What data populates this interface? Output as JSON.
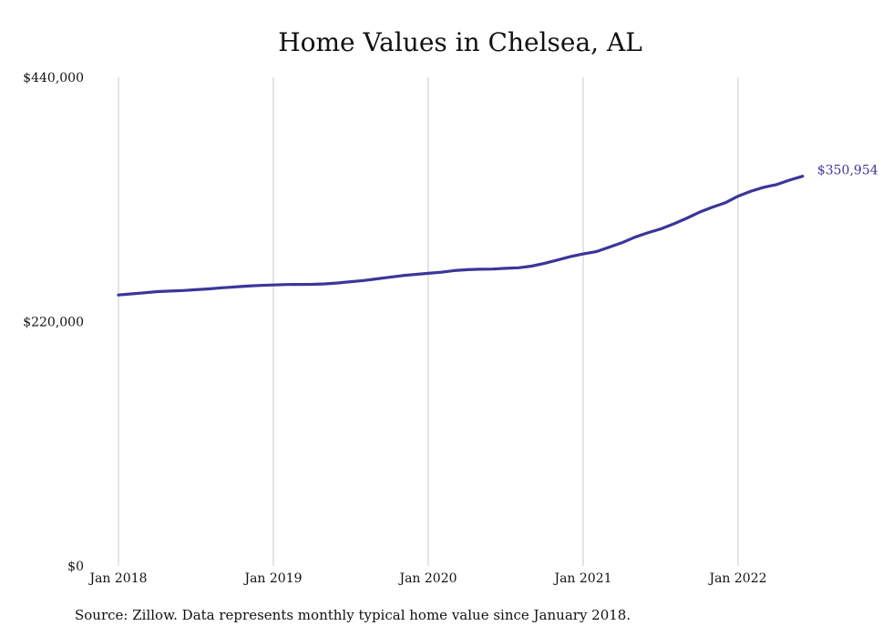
{
  "chart_data": {
    "type": "line",
    "title": "Home Values in Chelsea, AL",
    "xlabel": "",
    "ylabel": "",
    "ylim": [
      0,
      440000
    ],
    "y_ticks": [
      "$0",
      "$220,000",
      "$440,000"
    ],
    "x_ticks": [
      "Jan 2018",
      "Jan 2019",
      "Jan 2020",
      "Jan 2021",
      "Jan 2022"
    ],
    "x_tick_values": [
      "2018-01",
      "2019-01",
      "2020-01",
      "2021-01",
      "2022-01"
    ],
    "grid": "vertical",
    "legend": "none",
    "series": [
      {
        "color": "#3b3699",
        "end_label": "$350,954",
        "points": [
          [
            "2018-01",
            244000
          ],
          [
            "2018-02",
            245000
          ],
          [
            "2018-03",
            246000
          ],
          [
            "2018-04",
            247000
          ],
          [
            "2018-05",
            247500
          ],
          [
            "2018-06",
            248000
          ],
          [
            "2018-07",
            248800
          ],
          [
            "2018-08",
            249500
          ],
          [
            "2018-09",
            250500
          ],
          [
            "2018-10",
            251200
          ],
          [
            "2018-11",
            252000
          ],
          [
            "2018-12",
            252600
          ],
          [
            "2019-01",
            253000
          ],
          [
            "2019-02",
            253400
          ],
          [
            "2019-03",
            253500
          ],
          [
            "2019-04",
            253600
          ],
          [
            "2019-05",
            254000
          ],
          [
            "2019-06",
            254800
          ],
          [
            "2019-07",
            256000
          ],
          [
            "2019-08",
            257000
          ],
          [
            "2019-09",
            258500
          ],
          [
            "2019-10",
            260000
          ],
          [
            "2019-11",
            261500
          ],
          [
            "2019-12",
            262500
          ],
          [
            "2020-01",
            263500
          ],
          [
            "2020-02",
            264500
          ],
          [
            "2020-03",
            266000
          ],
          [
            "2020-04",
            266800
          ],
          [
            "2020-05",
            267200
          ],
          [
            "2020-06",
            267400
          ],
          [
            "2020-07",
            268000
          ],
          [
            "2020-08",
            268500
          ],
          [
            "2020-09",
            270000
          ],
          [
            "2020-10",
            272500
          ],
          [
            "2020-11",
            275500
          ],
          [
            "2020-12",
            278500
          ],
          [
            "2021-01",
            281000
          ],
          [
            "2021-02",
            283000
          ],
          [
            "2021-03",
            287000
          ],
          [
            "2021-04",
            291000
          ],
          [
            "2021-05",
            296000
          ],
          [
            "2021-06",
            300000
          ],
          [
            "2021-07",
            303500
          ],
          [
            "2021-08",
            308000
          ],
          [
            "2021-09",
            313000
          ],
          [
            "2021-10",
            318500
          ],
          [
            "2021-11",
            323000
          ],
          [
            "2021-12",
            327000
          ],
          [
            "2022-01",
            333000
          ],
          [
            "2022-02",
            337500
          ],
          [
            "2022-03",
            341000
          ],
          [
            "2022-04",
            343500
          ],
          [
            "2022-05",
            347500
          ],
          [
            "2022-06",
            350954
          ]
        ]
      }
    ]
  },
  "source_note": "Source: Zillow. Data represents monthly typical home value since January 2018."
}
